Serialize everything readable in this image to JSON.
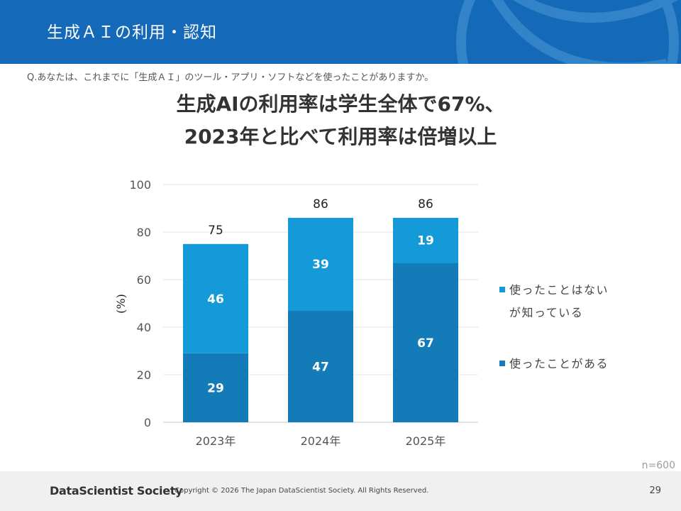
{
  "header": {
    "title": "生成ＡＩの利用・認知"
  },
  "question": "Q.あなたは、これまでに「生成ＡＩ」のツール・アプリ・ソフトなどを使ったことがありますか。",
  "headline": {
    "line1": "生成AIの利用率は学生全体で67%、",
    "line2": "2023年と比べて利用率は倍増以上"
  },
  "chart_data": {
    "type": "bar",
    "stacked": true,
    "categories": [
      "2023年",
      "2024年",
      "2025年"
    ],
    "series": [
      {
        "name": "使ったことがある",
        "values": [
          29,
          47,
          67
        ],
        "color": "#137cb8"
      },
      {
        "name": "使ったことはないが知っている",
        "values": [
          46,
          39,
          19
        ],
        "color": "#149ad8"
      }
    ],
    "totals": [
      75,
      86,
      86
    ],
    "ylabel": "(%)",
    "ylim": [
      0,
      100
    ],
    "yticks": [
      0,
      20,
      40,
      60,
      80,
      100
    ],
    "grid": true,
    "legend_position": "right"
  },
  "legend": {
    "aware_line1": "使ったことはない",
    "aware_line2": "が知っている",
    "used": "使ったことがある"
  },
  "sample_size": "n=600",
  "footer": {
    "logo": "DataScientist Society",
    "copyright": "Copyright © 2026  The Japan DataScientist Society. All Rights Reserved.",
    "page_number": "29"
  }
}
